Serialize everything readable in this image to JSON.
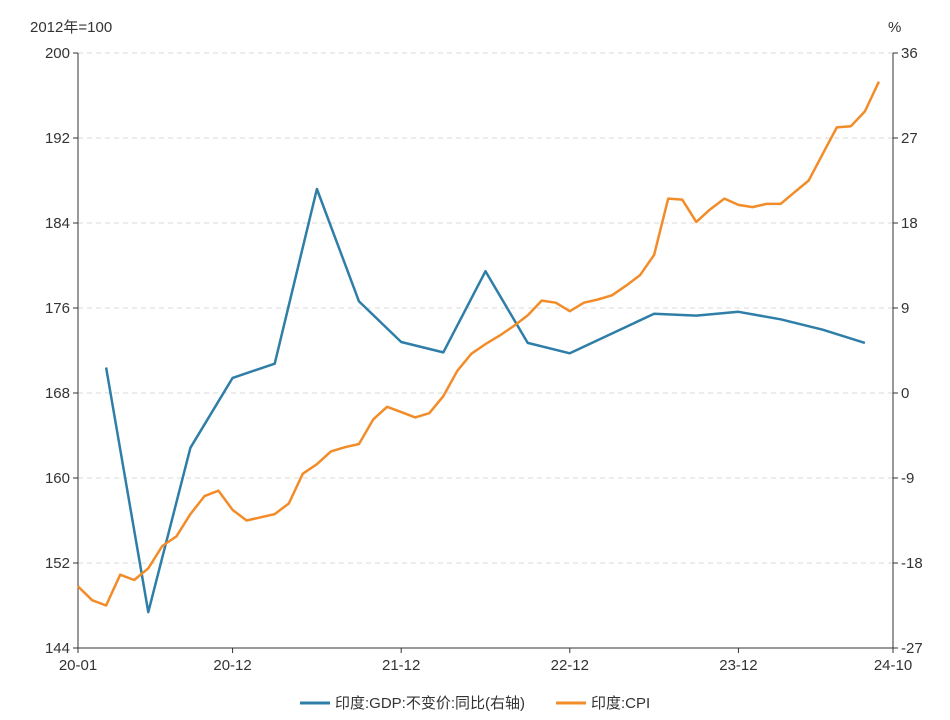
{
  "chart_data": {
    "type": "line",
    "left_axis": {
      "unit_label": "2012年=100",
      "ticks": [
        144,
        152,
        160,
        168,
        176,
        184,
        192,
        200
      ],
      "range": [
        144,
        200
      ]
    },
    "right_axis": {
      "unit_label": "%",
      "ticks": [
        -27,
        -18,
        -9,
        0,
        9,
        18,
        27,
        36
      ],
      "range": [
        -27,
        36
      ]
    },
    "x_axis": {
      "ticks": [
        "20-01",
        "20-12",
        "21-12",
        "22-12",
        "23-12",
        "24-10"
      ],
      "range_months": 58
    },
    "grid": "horizontal dashed",
    "legend": "bottom-center",
    "series": [
      {
        "name": "印度:GDP:不变价:同比(右轴)",
        "axis": "right",
        "color": "#2e7ea8",
        "points": [
          [
            "2020-03",
            2.7
          ],
          [
            "2020-06",
            -23.2
          ],
          [
            "2020-09",
            -5.8
          ],
          [
            "2020-12",
            1.6
          ],
          [
            "2021-03",
            3.1
          ],
          [
            "2021-06",
            21.6
          ],
          [
            "2021-09",
            9.7
          ],
          [
            "2021-12",
            5.4
          ],
          [
            "2022-03",
            4.3
          ],
          [
            "2022-06",
            12.9
          ],
          [
            "2022-09",
            5.3
          ],
          [
            "2022-12",
            4.2
          ],
          [
            "2023-03",
            6.3
          ],
          [
            "2023-06",
            8.4
          ],
          [
            "2023-09",
            8.2
          ],
          [
            "2023-12",
            8.6
          ],
          [
            "2024-03",
            7.8
          ],
          [
            "2024-06",
            6.7
          ],
          [
            "2024-09",
            5.3
          ]
        ]
      },
      {
        "name": "印度:CPI",
        "axis": "left",
        "color": "#f28c28",
        "points": [
          [
            "2020-01",
            149.8
          ],
          [
            "2020-02",
            148.5
          ],
          [
            "2020-03",
            148.0
          ],
          [
            "2020-04",
            150.9
          ],
          [
            "2020-05",
            150.4
          ],
          [
            "2020-06",
            151.5
          ],
          [
            "2020-07",
            153.6
          ],
          [
            "2020-08",
            154.5
          ],
          [
            "2020-09",
            156.6
          ],
          [
            "2020-10",
            158.3
          ],
          [
            "2020-11",
            158.8
          ],
          [
            "2020-12",
            157.0
          ],
          [
            "2021-01",
            156.0
          ],
          [
            "2021-02",
            156.3
          ],
          [
            "2021-03",
            156.6
          ],
          [
            "2021-04",
            157.6
          ],
          [
            "2021-05",
            160.4
          ],
          [
            "2021-06",
            161.3
          ],
          [
            "2021-07",
            162.5
          ],
          [
            "2021-08",
            162.9
          ],
          [
            "2021-09",
            163.2
          ],
          [
            "2021-10",
            165.5
          ],
          [
            "2021-11",
            166.7
          ],
          [
            "2021-12",
            166.2
          ],
          [
            "2022-01",
            165.7
          ],
          [
            "2022-02",
            166.1
          ],
          [
            "2022-03",
            167.7
          ],
          [
            "2022-04",
            170.1
          ],
          [
            "2022-05",
            171.7
          ],
          [
            "2022-06",
            172.6
          ],
          [
            "2022-07",
            173.4
          ],
          [
            "2022-08",
            174.3
          ],
          [
            "2022-09",
            175.3
          ],
          [
            "2022-10",
            176.7
          ],
          [
            "2022-11",
            176.5
          ],
          [
            "2022-12",
            175.7
          ],
          [
            "2023-01",
            176.5
          ],
          [
            "2023-02",
            176.8
          ],
          [
            "2023-03",
            177.2
          ],
          [
            "2023-04",
            178.1
          ],
          [
            "2023-05",
            179.1
          ],
          [
            "2023-06",
            181.0
          ],
          [
            "2023-07",
            186.3
          ],
          [
            "2023-08",
            186.2
          ],
          [
            "2023-09",
            184.1
          ],
          [
            "2023-10",
            185.3
          ],
          [
            "2023-11",
            186.3
          ],
          [
            "2023-12",
            185.7
          ],
          [
            "2024-01",
            185.5
          ],
          [
            "2024-02",
            185.8
          ],
          [
            "2024-03",
            185.8
          ],
          [
            "2024-04",
            186.9
          ],
          [
            "2024-05",
            188.0
          ],
          [
            "2024-06",
            190.5
          ],
          [
            "2024-07",
            193.0
          ],
          [
            "2024-08",
            193.1
          ],
          [
            "2024-09",
            194.5
          ],
          [
            "2024-10",
            197.3
          ]
        ]
      }
    ]
  }
}
